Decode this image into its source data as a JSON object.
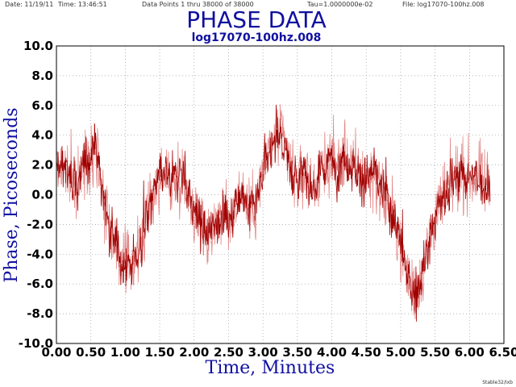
{
  "header": {
    "date": "Date: 11/19/11",
    "time": "Time: 13:46:51",
    "points": "Data Points 1 thru 38000 of 38000",
    "tau": "Tau=1.0000000e-02",
    "file": "File: log17070-100hz.008"
  },
  "footer": "Stable32/Ixb",
  "colors": {
    "trace": "#a00000",
    "trace_light": "#d86060",
    "title": "#1010a0",
    "grid": "#9a9a9a"
  },
  "chart_data": {
    "type": "line",
    "title": "PHASE DATA",
    "subtitle": "log17070-100hz.008",
    "xlabel": "Time, Minutes",
    "ylabel": "Phase, Picoseconds",
    "xlim": [
      0,
      6.5
    ],
    "ylim": [
      -10,
      10
    ],
    "x_ticks": [
      "0.00",
      "0.50",
      "1.00",
      "1.50",
      "2.00",
      "2.50",
      "3.00",
      "3.50",
      "4.00",
      "4.50",
      "5.00",
      "5.50",
      "6.00",
      "6.50"
    ],
    "y_ticks": [
      "10.0",
      "8.0",
      "6.0",
      "4.0",
      "2.0",
      "0.0",
      "-2.0",
      "-4.0",
      "-6.0",
      "-8.0",
      "-10.0"
    ],
    "grid": true,
    "series": [
      {
        "x": [
          0.0,
          0.1,
          0.2,
          0.3,
          0.4,
          0.5,
          0.55,
          0.6,
          0.7,
          0.8,
          0.9,
          1.0,
          1.1,
          1.2,
          1.3,
          1.4,
          1.5,
          1.6,
          1.7,
          1.8,
          1.9,
          2.0,
          2.1,
          2.2,
          2.3,
          2.4,
          2.5,
          2.6,
          2.7,
          2.8,
          2.9,
          3.0,
          3.1,
          3.2,
          3.3,
          3.4,
          3.5,
          3.6,
          3.7,
          3.8,
          3.9,
          4.0,
          4.1,
          4.2,
          4.3,
          4.4,
          4.5,
          4.6,
          4.7,
          4.8,
          4.9,
          5.0,
          5.1,
          5.2,
          5.3,
          5.4,
          5.5,
          5.6,
          5.7,
          5.8,
          5.9,
          6.0,
          6.1,
          6.2,
          6.3
        ],
        "y": [
          1.5,
          2.2,
          1.0,
          0.5,
          1.8,
          3.0,
          3.4,
          2.5,
          -0.5,
          -2.5,
          -4.0,
          -5.0,
          -4.5,
          -3.8,
          -2.0,
          0.0,
          1.0,
          1.2,
          0.8,
          1.5,
          0.5,
          -1.0,
          -2.0,
          -2.8,
          -2.0,
          -1.0,
          -2.0,
          -0.5,
          0.5,
          -1.0,
          -0.5,
          1.5,
          3.0,
          4.2,
          3.5,
          2.0,
          1.0,
          1.5,
          0.5,
          1.0,
          2.0,
          2.5,
          2.0,
          2.8,
          1.8,
          1.5,
          1.0,
          1.5,
          0.5,
          -0.5,
          -1.5,
          -3.5,
          -5.5,
          -6.5,
          -5.5,
          -3.5,
          -1.5,
          -0.5,
          0.5,
          1.0,
          1.5,
          1.0,
          1.2,
          0.8,
          0.5
        ]
      }
    ]
  }
}
